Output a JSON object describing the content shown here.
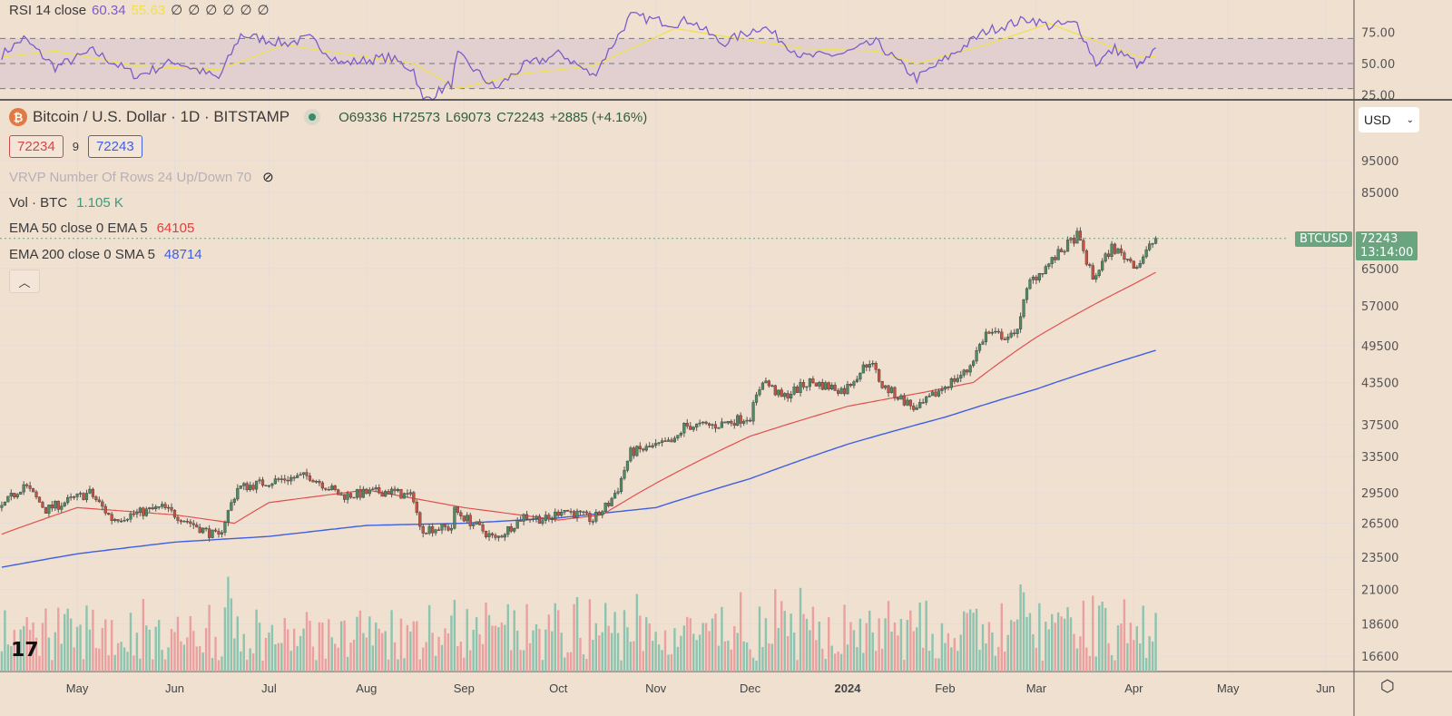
{
  "rsi_legend": {
    "label": "RSI 14 close",
    "value": "60.34",
    "ma_value": "55.63",
    "hidden_values": [
      "∅",
      "∅",
      "∅",
      "∅",
      "∅",
      "∅"
    ]
  },
  "symbol": {
    "title": "Bitcoin / U.S. Dollar · 1D · BITSTAMP",
    "icon": "bitcoin-icon",
    "ohlc": {
      "o": "O69336",
      "h": "H72573",
      "l": "L69073",
      "c": "C72243",
      "change": "+2885 (+4.16%)"
    }
  },
  "trade": {
    "sell": "72234",
    "spread": "9",
    "buy": "72243"
  },
  "indicators": {
    "vrvp": "VRVP Number Of Rows 24 Up/Down 70",
    "vol_label": "Vol · BTC",
    "vol_value": "1.105 K",
    "ema50_label": "EMA 50 close 0 EMA 5",
    "ema50_value": "64105",
    "ema200_label": "EMA 200 close 0 SMA 5",
    "ema200_value": "48714"
  },
  "currency": "USD",
  "price_tag": {
    "symbol": "BTCUSD",
    "price": "72243",
    "countdown": "13:14:00"
  },
  "colors": {
    "background": "#f0e0d0",
    "up": "#4e8a62",
    "down": "#c8523f",
    "ema50": "#e05050",
    "ema200": "#3f5fe0",
    "rsi": "#7b5cc9",
    "rsi_ma": "#f0e050",
    "tag": "#6aa57f"
  },
  "chart_data": [
    {
      "type": "candlestick",
      "title": "Bitcoin / U.S. Dollar · 1D · BITSTAMP",
      "y_scale": "log",
      "y_ticks": [
        "95000",
        "85000",
        "65000",
        "57000",
        "49500",
        "43500",
        "37500",
        "33500",
        "29500",
        "26500",
        "23500",
        "21000",
        "18600",
        "16600"
      ],
      "x_ticks": [
        "May",
        "Jun",
        "Jul",
        "Aug",
        "Sep",
        "Oct",
        "Nov",
        "Dec",
        "2024",
        "Feb",
        "Mar",
        "Apr",
        "May",
        "Jun"
      ],
      "grid": true,
      "close_keypoints": [
        [
          "2023-04-07",
          28000
        ],
        [
          "2023-04-14",
          30400
        ],
        [
          "2023-04-21",
          27800
        ],
        [
          "2023-05-05",
          29500
        ],
        [
          "2023-05-12",
          26900
        ],
        [
          "2023-05-28",
          28000
        ],
        [
          "2023-06-10",
          25900
        ],
        [
          "2023-06-15",
          25200
        ],
        [
          "2023-06-21",
          30000
        ],
        [
          "2023-07-06",
          31000
        ],
        [
          "2023-07-14",
          31300
        ],
        [
          "2023-07-24",
          29200
        ],
        [
          "2023-08-08",
          29700
        ],
        [
          "2023-08-16",
          29000
        ],
        [
          "2023-08-18",
          26000
        ],
        [
          "2023-08-28",
          26100
        ],
        [
          "2023-08-29",
          27700
        ],
        [
          "2023-09-11",
          25000
        ],
        [
          "2023-09-20",
          27200
        ],
        [
          "2023-09-28",
          26800
        ],
        [
          "2023-10-02",
          27900
        ],
        [
          "2023-10-12",
          26800
        ],
        [
          "2023-10-17",
          28400
        ],
        [
          "2023-10-20",
          30000
        ],
        [
          "2023-10-24",
          34000
        ],
        [
          "2023-11-07",
          35300
        ],
        [
          "2023-11-10",
          37300
        ],
        [
          "2023-11-20",
          37400
        ],
        [
          "2023-12-01",
          38600
        ],
        [
          "2023-12-05",
          44000
        ],
        [
          "2023-12-11",
          41200
        ],
        [
          "2023-12-20",
          43600
        ],
        [
          "2023-12-31",
          42300
        ],
        [
          "2024-01-08",
          47000
        ],
        [
          "2024-01-12",
          43000
        ],
        [
          "2024-01-23",
          39500
        ],
        [
          "2024-02-01",
          43000
        ],
        [
          "2024-02-08",
          45300
        ],
        [
          "2024-02-14",
          51700
        ],
        [
          "2024-02-23",
          51000
        ],
        [
          "2024-02-28",
          62000
        ],
        [
          "2024-03-05",
          66000
        ],
        [
          "2024-03-14",
          73000
        ],
        [
          "2024-03-19",
          62500
        ],
        [
          "2024-03-25",
          70000
        ],
        [
          "2024-04-02",
          65600
        ],
        [
          "2024-04-08",
          72243
        ]
      ],
      "series": [
        {
          "name": "EMA 50",
          "points": [
            [
              "2023-04-07",
              25500
            ],
            [
              "2023-05-01",
              28000
            ],
            [
              "2023-06-01",
              27300
            ],
            [
              "2023-06-20",
              26500
            ],
            [
              "2023-07-01",
              28500
            ],
            [
              "2023-08-01",
              29800
            ],
            [
              "2023-09-01",
              28000
            ],
            [
              "2023-10-01",
              26800
            ],
            [
              "2023-10-15",
              27300
            ],
            [
              "2023-11-01",
              30500
            ],
            [
              "2023-12-01",
              36000
            ],
            [
              "2024-01-01",
              40000
            ],
            [
              "2024-01-25",
              42000
            ],
            [
              "2024-02-10",
              43500
            ],
            [
              "2024-03-01",
              51000
            ],
            [
              "2024-04-01",
              61500
            ],
            [
              "2024-04-08",
              64105
            ]
          ]
        },
        {
          "name": "EMA 200",
          "points": [
            [
              "2023-04-07",
              22700
            ],
            [
              "2023-05-01",
              23800
            ],
            [
              "2023-06-01",
              24800
            ],
            [
              "2023-07-01",
              25300
            ],
            [
              "2023-08-01",
              26300
            ],
            [
              "2023-09-01",
              26500
            ],
            [
              "2023-10-01",
              27000
            ],
            [
              "2023-11-01",
              28000
            ],
            [
              "2023-12-01",
              31000
            ],
            [
              "2024-01-01",
              35000
            ],
            [
              "2024-02-01",
              38500
            ],
            [
              "2024-03-01",
              42500
            ],
            [
              "2024-04-08",
              48714
            ]
          ]
        }
      ]
    },
    {
      "type": "line",
      "title": "RSI 14 close",
      "y_ticks": [
        "75.00",
        "50.00",
        "25.00"
      ],
      "bands": [
        30,
        50,
        70
      ],
      "rsi_keypoints": [
        [
          "2023-04-07",
          57
        ],
        [
          "2023-04-14",
          70
        ],
        [
          "2023-04-24",
          47
        ],
        [
          "2023-05-06",
          60
        ],
        [
          "2023-05-20",
          40
        ],
        [
          "2023-06-01",
          52
        ],
        [
          "2023-06-15",
          38
        ],
        [
          "2023-06-22",
          73
        ],
        [
          "2023-07-06",
          66
        ],
        [
          "2023-07-14",
          70
        ],
        [
          "2023-07-24",
          50
        ],
        [
          "2023-08-08",
          55
        ],
        [
          "2023-08-16",
          45
        ],
        [
          "2023-08-19",
          20
        ],
        [
          "2023-08-28",
          34
        ],
        [
          "2023-08-30",
          57
        ],
        [
          "2023-09-11",
          30
        ],
        [
          "2023-09-20",
          48
        ],
        [
          "2023-10-02",
          58
        ],
        [
          "2023-10-12",
          40
        ],
        [
          "2023-10-24",
          88
        ],
        [
          "2023-11-07",
          82
        ],
        [
          "2023-11-12",
          85
        ],
        [
          "2023-11-22",
          66
        ],
        [
          "2023-12-05",
          80
        ],
        [
          "2023-12-18",
          55
        ],
        [
          "2023-12-31",
          58
        ],
        [
          "2024-01-10",
          67
        ],
        [
          "2024-01-23",
          38
        ],
        [
          "2024-02-02",
          55
        ],
        [
          "2024-02-14",
          76
        ],
        [
          "2024-02-28",
          86
        ],
        [
          "2024-03-05",
          80
        ],
        [
          "2024-03-14",
          82
        ],
        [
          "2024-03-20",
          50
        ],
        [
          "2024-03-26",
          62
        ],
        [
          "2024-04-03",
          48
        ],
        [
          "2024-04-08",
          60.34
        ]
      ],
      "rsi_ma_keypoints": [
        [
          "2023-04-07",
          55
        ],
        [
          "2023-04-24",
          60
        ],
        [
          "2023-05-20",
          48
        ],
        [
          "2023-06-15",
          45
        ],
        [
          "2023-07-06",
          65
        ],
        [
          "2023-07-24",
          58
        ],
        [
          "2023-08-16",
          50
        ],
        [
          "2023-08-30",
          30
        ],
        [
          "2023-09-20",
          42
        ],
        [
          "2023-10-12",
          48
        ],
        [
          "2023-11-07",
          78
        ],
        [
          "2023-11-22",
          72
        ],
        [
          "2023-12-18",
          62
        ],
        [
          "2024-01-10",
          60
        ],
        [
          "2024-01-23",
          50
        ],
        [
          "2024-02-14",
          65
        ],
        [
          "2024-03-05",
          82
        ],
        [
          "2024-03-20",
          68
        ],
        [
          "2024-04-03",
          55
        ],
        [
          "2024-04-08",
          55.63
        ]
      ]
    }
  ]
}
